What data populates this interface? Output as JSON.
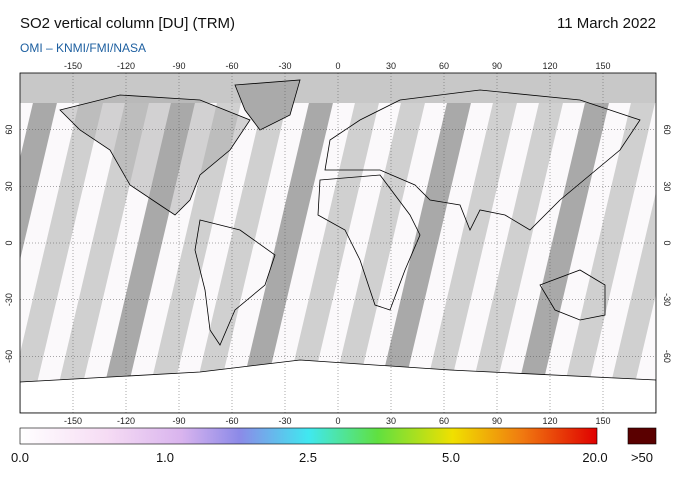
{
  "header": {
    "title": "SO2 vertical column [DU] (TRM)",
    "source": "OMI  –  KNMI/FMI/NASA",
    "date": "11 March 2022"
  },
  "map": {
    "lon_ticks": [
      -150,
      -120,
      -90,
      -60,
      -30,
      0,
      30,
      60,
      90,
      120,
      150
    ],
    "lat_ticks": [
      60,
      30,
      0,
      -30,
      -60
    ],
    "xlim": [
      -180,
      180
    ],
    "ylim": [
      -90,
      90
    ]
  },
  "colorbar": {
    "labels": [
      "0.0",
      "1.0",
      "2.5",
      "5.0",
      "20.0"
    ],
    "overflow_label": ">50"
  }
}
